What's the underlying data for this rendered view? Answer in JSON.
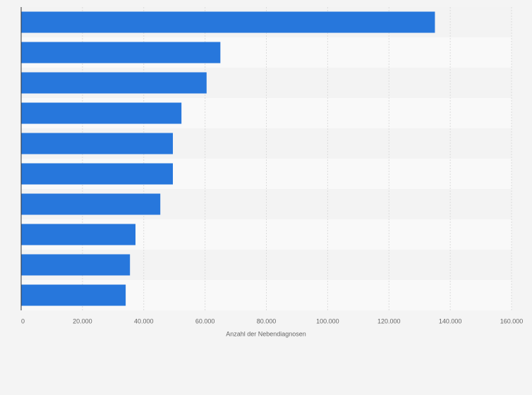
{
  "chart_data": {
    "type": "bar",
    "orientation": "horizontal",
    "x_label": "Anzahl der Nebendiagnosen",
    "categories": [
      null,
      null,
      null,
      null,
      null,
      null,
      null,
      null,
      null,
      null
    ],
    "values": [
      135000,
      65000,
      60500,
      52300,
      49500,
      49500,
      45400,
      37300,
      35500,
      34100
    ],
    "color": "#2777dc",
    "xlim": [
      0,
      160000
    ],
    "xticks": [
      0,
      {
        "value": 20000,
        "label": "20.000"
      },
      {
        "value": 40000,
        "label": "40.000"
      },
      {
        "value": 60000,
        "label": "60.000"
      },
      {
        "value": 80000,
        "label": "80.000"
      },
      {
        "value": 100000,
        "label": "100.000"
      },
      {
        "value": 120000,
        "label": "120.000"
      },
      {
        "value": 140000,
        "label": "140.000"
      },
      {
        "value": 160000,
        "label": "160.000"
      }
    ],
    "grid": true
  }
}
